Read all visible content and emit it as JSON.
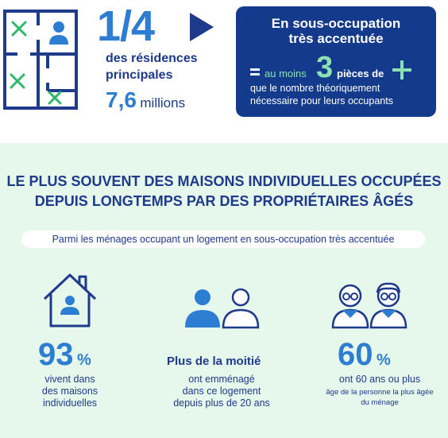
{
  "top": {
    "fraction": "1/4",
    "res_line1": "des résidences",
    "res_line2": "principales",
    "million_value": "7,6",
    "million_unit": "millions"
  },
  "box": {
    "title1": "En sous-occupation",
    "title2": "très accentuée",
    "au_moins": "au moins",
    "value": "3",
    "pieces": "pièces de",
    "desc1": "que le nombre théoriquement",
    "desc2": "nécessaire pour leurs occupants"
  },
  "headline": {
    "line1": "LE PLUS SOUVENT DES MAISONS INDIVIDUELLES OCCUPÉES",
    "line2": "DEPUIS LONGTEMPS PAR DES PROPRIÉTAIRES ÂGÉS"
  },
  "pill": "Parmi les ménages occupant un logement en sous-occupation très accentuée",
  "stats": {
    "houses": {
      "value": "93",
      "unit": "%",
      "desc1": "vivent dans",
      "desc2": "des maisons",
      "desc3": "individuelles"
    },
    "moved": {
      "label": "Plus de la moitié",
      "desc1": "ont emménagé",
      "desc2": "dans ce logement",
      "desc3": "depuis plus de 20 ans"
    },
    "age": {
      "value": "60",
      "unit": "%",
      "desc1": "ont 60 ans ou plus",
      "small1": "âge de la personne la plus âgée",
      "small2": "du ménage"
    }
  },
  "colors": {
    "navy": "#1e3a8a",
    "blue": "#2d7dd2",
    "box_bg": "#143a8c",
    "mint": "#8be0b4",
    "panel_bg": "#e6f7ec",
    "green_x": "#2fb86a"
  },
  "icons": [
    "floorplan-icon",
    "play-triangle-icon",
    "equals-icon",
    "plus-icon",
    "house-person-icon",
    "two-people-icon",
    "seniors-icon"
  ]
}
